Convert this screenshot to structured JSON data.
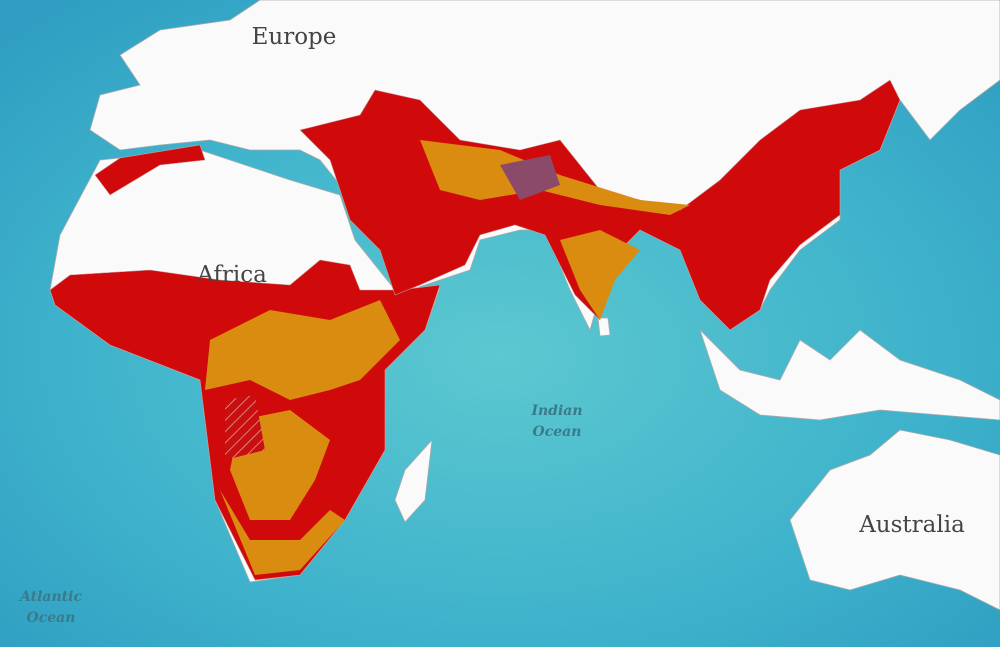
{
  "map": {
    "labels": [
      {
        "name": "continent",
        "lines": [
          "Europe"
        ]
      },
      {
        "name": "continent",
        "lines": [
          "Africa"
        ]
      },
      {
        "name": "continent",
        "lines": [
          "Australia"
        ]
      },
      {
        "name": "ocean",
        "lines": [
          "Indian",
          "Ocean"
        ]
      },
      {
        "name": "ocean",
        "lines": [
          "Atlantic",
          "Ocean"
        ]
      }
    ]
  }
}
